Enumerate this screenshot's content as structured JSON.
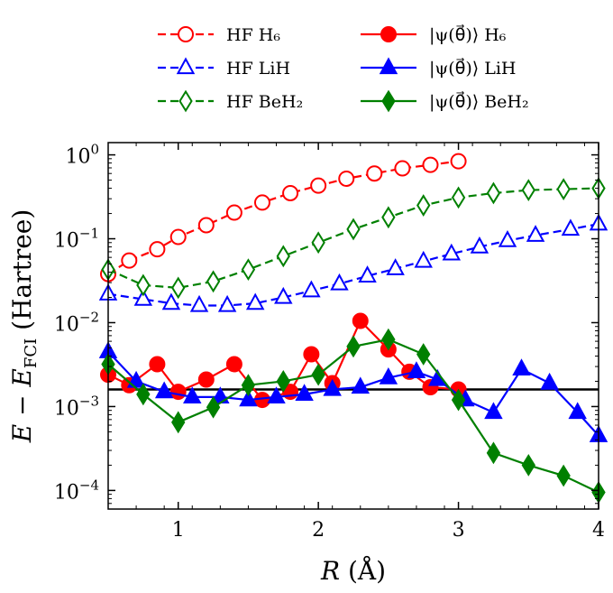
{
  "chart_data": {
    "type": "line",
    "xlabel": "R (Å)",
    "ylabel": "E − E_FCI (Hartree)",
    "xlim": [
      0.5,
      4.0
    ],
    "ylim": [
      6e-05,
      1.4
    ],
    "yscale": "log",
    "grid": false,
    "legend_placement": "top, outside axes, two columns",
    "x_ticks": [
      {
        "value": 1,
        "label": "1"
      },
      {
        "value": 2,
        "label": "2"
      },
      {
        "value": 3,
        "label": "3"
      },
      {
        "value": 4,
        "label": "4"
      }
    ],
    "y_ticks": [
      {
        "value": 0.0001,
        "base": "10",
        "exp": "−4"
      },
      {
        "value": 0.001,
        "base": "10",
        "exp": "−3"
      },
      {
        "value": 0.01,
        "base": "10",
        "exp": "−2"
      },
      {
        "value": 0.1,
        "base": "10",
        "exp": "−1"
      },
      {
        "value": 1,
        "base": "10",
        "exp": "0"
      }
    ],
    "reference_line": {
      "y": 0.0016,
      "color": "#000000"
    },
    "series": [
      {
        "name": "HF H₆",
        "color": "#ff0000",
        "marker": "circle",
        "filled": false,
        "dashed": true,
        "x": [
          0.5,
          0.65,
          0.85,
          1.0,
          1.2,
          1.4,
          1.6,
          1.8,
          2.0,
          2.2,
          2.4,
          2.6,
          2.8,
          3.0
        ],
        "y": [
          0.038,
          0.055,
          0.075,
          0.105,
          0.145,
          0.205,
          0.27,
          0.35,
          0.43,
          0.52,
          0.6,
          0.69,
          0.76,
          0.84
        ]
      },
      {
        "name": "HF LiH",
        "color": "#0000ff",
        "marker": "triangle",
        "filled": false,
        "dashed": true,
        "x": [
          0.5,
          0.75,
          0.95,
          1.15,
          1.35,
          1.55,
          1.75,
          1.95,
          2.15,
          2.35,
          2.55,
          2.75,
          2.95,
          3.15,
          3.35,
          3.55,
          3.8,
          4.0
        ],
        "y": [
          0.022,
          0.019,
          0.017,
          0.016,
          0.016,
          0.017,
          0.02,
          0.024,
          0.029,
          0.036,
          0.044,
          0.054,
          0.066,
          0.08,
          0.095,
          0.11,
          0.13,
          0.15
        ]
      },
      {
        "name": "HF BeH₂",
        "color": "#008000",
        "marker": "diamond",
        "filled": false,
        "dashed": true,
        "x": [
          0.5,
          0.75,
          1.0,
          1.25,
          1.5,
          1.75,
          2.0,
          2.25,
          2.5,
          2.75,
          3.0,
          3.25,
          3.5,
          3.75,
          4.0
        ],
        "y": [
          0.043,
          0.028,
          0.026,
          0.031,
          0.043,
          0.062,
          0.09,
          0.13,
          0.18,
          0.25,
          0.31,
          0.35,
          0.38,
          0.39,
          0.4
        ]
      },
      {
        "name": "|ψ(θ⃗)⟩ H₆",
        "color": "#ff0000",
        "marker": "circle",
        "filled": true,
        "dashed": false,
        "x": [
          0.5,
          0.65,
          0.85,
          1.0,
          1.2,
          1.4,
          1.6,
          1.8,
          1.95,
          2.1,
          2.3,
          2.5,
          2.65,
          2.8,
          3.0
        ],
        "y": [
          0.0024,
          0.0018,
          0.0032,
          0.0015,
          0.0021,
          0.0032,
          0.0012,
          0.0015,
          0.0042,
          0.0019,
          0.0105,
          0.0048,
          0.0026,
          0.0017,
          0.0016
        ]
      },
      {
        "name": "|ψ(θ⃗)⟩ LiH",
        "color": "#0000ff",
        "marker": "triangle",
        "filled": true,
        "dashed": false,
        "x": [
          0.5,
          0.7,
          0.9,
          1.1,
          1.3,
          1.5,
          1.7,
          1.9,
          2.1,
          2.3,
          2.5,
          2.7,
          2.85,
          3.05,
          3.25,
          3.45,
          3.65,
          3.85,
          4.0
        ],
        "y": [
          0.0045,
          0.002,
          0.0015,
          0.0013,
          0.0013,
          0.0012,
          0.0013,
          0.0014,
          0.0016,
          0.0017,
          0.0022,
          0.0026,
          0.0021,
          0.0012,
          0.00085,
          0.0028,
          0.0019,
          0.00085,
          0.00045
        ]
      },
      {
        "name": "|ψ(θ⃗)⟩ BeH₂",
        "color": "#008000",
        "marker": "diamond",
        "filled": true,
        "dashed": false,
        "x": [
          0.5,
          0.75,
          1.0,
          1.25,
          1.5,
          1.75,
          2.0,
          2.25,
          2.5,
          2.75,
          3.0,
          3.25,
          3.5,
          3.75,
          4.0
        ],
        "y": [
          0.0032,
          0.0014,
          0.00065,
          0.00098,
          0.0018,
          0.002,
          0.0024,
          0.0052,
          0.0063,
          0.0042,
          0.0012,
          0.00028,
          0.0002,
          0.00015,
          9.5e-05
        ]
      }
    ]
  }
}
